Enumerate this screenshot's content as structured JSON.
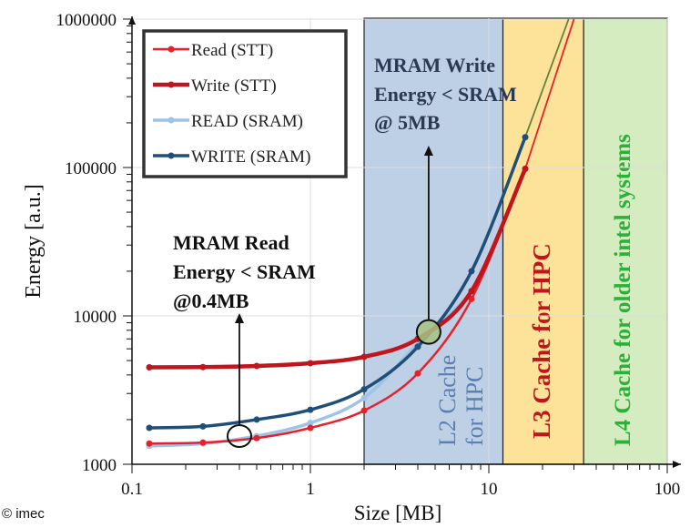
{
  "chart_data": {
    "type": "line",
    "xlabel": "Size [MB]",
    "ylabel": "Energy [a.u.]",
    "x_scale": "log",
    "y_scale": "log",
    "xlim": [
      0.1,
      100
    ],
    "ylim": [
      1000,
      1000000
    ],
    "x_ticks": [
      "0.1",
      "1",
      "10",
      "100"
    ],
    "y_ticks": [
      "1000",
      "10000",
      "100000",
      "1000000"
    ],
    "grid": true,
    "legend_position": "top-left",
    "x": [
      0.125,
      0.25,
      0.5,
      1,
      2,
      4,
      8,
      16
    ],
    "series": [
      {
        "name": "Read (STT)",
        "color": "#e8202a",
        "values": [
          1380,
          1400,
          1500,
          1760,
          2300,
          4100,
          13000,
          98000
        ],
        "extend_to": [
          30,
          1000000
        ]
      },
      {
        "name": "Write (STT)",
        "color": "#c0151c",
        "values": [
          4500,
          4520,
          4600,
          4800,
          5300,
          7000,
          14700,
          98000
        ]
      },
      {
        "name": "READ (SRAM)",
        "color": "#9dc3e6",
        "values": [
          1330,
          1380,
          1550,
          1900,
          2800,
          6500,
          14000,
          null
        ]
      },
      {
        "name": "WRITE (SRAM)",
        "color": "#1f4e79",
        "values": [
          1760,
          1800,
          2000,
          2330,
          3200,
          6200,
          20000,
          160000
        ],
        "extend_to": [
          28,
          1000000
        ]
      }
    ],
    "regions": [
      {
        "label": "L2 Cache for HPC",
        "line1": "L2 Cache",
        "line2": "for HPC",
        "from": 2,
        "to": 12,
        "fill": "#bdd0e6",
        "text_color": "#5b7fb0"
      },
      {
        "label": "L3 Cache for HPC",
        "from": 12,
        "to": 34,
        "fill": "#fde39a",
        "text_color": "#c0151c"
      },
      {
        "label": "L4 Cache for older intel systems",
        "from": 34,
        "to": 100,
        "fill": "#d4ecbf",
        "text_color": "#2bb03a"
      }
    ],
    "annotations": [
      {
        "lines": [
          "MRAM Read",
          "Energy < SRAM",
          "@0.4MB"
        ],
        "x": 0.4,
        "y": 1550
      },
      {
        "lines": [
          "MRAM Write",
          "Energy < SRAM",
          "@ 5MB"
        ],
        "x": 4.6,
        "y": 7800
      }
    ]
  },
  "copyright": "© imec"
}
